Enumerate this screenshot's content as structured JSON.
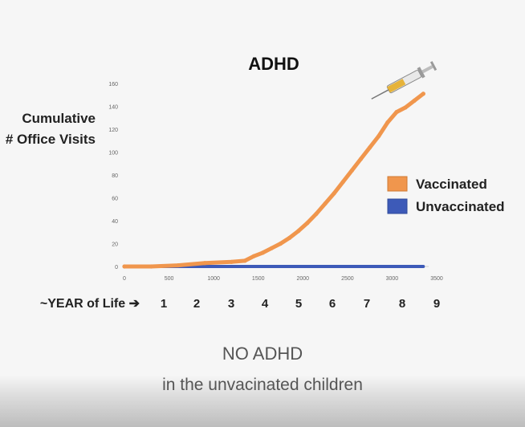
{
  "chart_data": {
    "type": "line",
    "title": "ADHD",
    "ylabel_lines": [
      "Cumulative",
      "# Office Visits"
    ],
    "x_ticks": [
      0,
      500,
      1000,
      1500,
      2000,
      2500,
      3000,
      3500
    ],
    "y_ticks": [
      0,
      20,
      40,
      60,
      80,
      100,
      120,
      140,
      160
    ],
    "xlim": [
      0,
      3500
    ],
    "ylim": [
      0,
      160
    ],
    "year_axis_label": "~YEAR of Life ➔",
    "year_labels": [
      "1",
      "2",
      "3",
      "4",
      "5",
      "6",
      "7",
      "8",
      "9"
    ],
    "legend_position": "right",
    "series": [
      {
        "name": "Vaccinated",
        "color": "#f0964d",
        "x": [
          0,
          300,
          600,
          900,
          1200,
          1350,
          1450,
          1550,
          1650,
          1750,
          1850,
          1950,
          2050,
          2150,
          2250,
          2350,
          2450,
          2550,
          2650,
          2750,
          2850,
          2950,
          3050,
          3150,
          3250,
          3350
        ],
        "y": [
          0,
          0,
          1,
          3,
          4,
          5,
          9,
          12,
          16,
          20,
          25,
          31,
          38,
          46,
          55,
          64,
          74,
          84,
          94,
          104,
          114,
          126,
          135,
          139,
          145,
          151
        ]
      },
      {
        "name": "Unvaccinated",
        "color": "#3d5ab8",
        "x": [
          0,
          800,
          1600,
          2400,
          3350
        ],
        "y": [
          0,
          0,
          0,
          0,
          0
        ]
      }
    ]
  },
  "caption": {
    "line1": "NO ADHD",
    "line2": "in the unvacinated children"
  }
}
